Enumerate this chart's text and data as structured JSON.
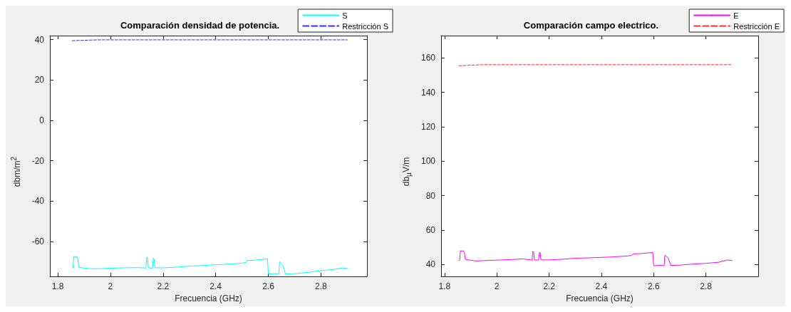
{
  "chart_data": [
    {
      "type": "line",
      "title": "Comparación densidad de potencia.",
      "xlabel": "Frecuencia (GHz)",
      "ylabel": "dbm/m$^{2}$",
      "xlim": [
        1.77,
        2.975
      ],
      "ylim": [
        -77.3,
        42
      ],
      "xticks": [
        1.8,
        2,
        2.2,
        2.4,
        2.6,
        2.8
      ],
      "yticks": [
        -60,
        -40,
        -20,
        0,
        20,
        40
      ],
      "grid": false,
      "legend": "top right",
      "marker": "none",
      "series": [
        {
          "name": "S",
          "color": "#00ffff",
          "line_style": "solid",
          "x": [
            1.855,
            1.858,
            1.861,
            1.868,
            1.872,
            1.876,
            1.88,
            1.92,
            1.95,
            2.0,
            2.05,
            2.1,
            2.135,
            2.138,
            2.141,
            2.144,
            2.16,
            2.163,
            2.166,
            2.169,
            2.172,
            2.2,
            2.25,
            2.3,
            2.35,
            2.4,
            2.45,
            2.5,
            2.515,
            2.52,
            2.55,
            2.597,
            2.6,
            2.62,
            2.64,
            2.643,
            2.646,
            2.655,
            2.66,
            2.665,
            2.7,
            2.75,
            2.8,
            2.85,
            2.88,
            2.9
          ],
          "values": [
            -73.1,
            -73.0,
            -67.4,
            -67.6,
            -67.4,
            -68.5,
            -72.8,
            -73.4,
            -73.5,
            -73.2,
            -73.0,
            -72.9,
            -73.1,
            -67.7,
            -67.9,
            -73.0,
            -73.2,
            -68.3,
            -68.5,
            -73.1,
            -73.0,
            -73.0,
            -72.7,
            -72.2,
            -71.9,
            -71.5,
            -71.2,
            -70.7,
            -70.4,
            -69.4,
            -69.2,
            -68.6,
            -76.1,
            -75.9,
            -76.0,
            -70.0,
            -70.5,
            -71.6,
            -73.5,
            -76.1,
            -75.9,
            -75.3,
            -74.4,
            -73.8,
            -73.1,
            -73.3
          ]
        },
        {
          "name": "Restricción S",
          "color": "#3333ff",
          "line_style": "dashed",
          "x": [
            1.855,
            1.95,
            2.9
          ],
          "values": [
            39.5,
            39.9,
            39.9
          ]
        }
      ]
    },
    {
      "type": "line",
      "title": "Comparación campo electrico.",
      "xlabel": "Frecuencia (GHz)",
      "ylabel": "db$_{µ}$V/m",
      "xlim": [
        1.787,
        3.0
      ],
      "ylim": [
        33,
        173
      ],
      "xticks": [
        1.8,
        2,
        2.2,
        2.4,
        2.6,
        2.8
      ],
      "yticks": [
        40,
        60,
        80,
        100,
        120,
        140,
        160
      ],
      "grid": false,
      "legend": "top right",
      "marker": "none",
      "series": [
        {
          "name": "E",
          "color": "#ff00ff",
          "line_style": "solid",
          "x": [
            1.855,
            1.858,
            1.861,
            1.868,
            1.872,
            1.876,
            1.88,
            1.92,
            1.95,
            2.0,
            2.05,
            2.1,
            2.135,
            2.138,
            2.141,
            2.144,
            2.16,
            2.163,
            2.166,
            2.169,
            2.172,
            2.2,
            2.25,
            2.3,
            2.35,
            2.4,
            2.45,
            2.5,
            2.515,
            2.52,
            2.55,
            2.597,
            2.6,
            2.62,
            2.64,
            2.643,
            2.646,
            2.655,
            2.66,
            2.665,
            2.7,
            2.75,
            2.8,
            2.85,
            2.88,
            2.9
          ],
          "values": [
            42.3,
            42.4,
            48.0,
            47.6,
            48.0,
            47.0,
            42.9,
            42.0,
            42.2,
            42.5,
            42.8,
            43.2,
            42.5,
            47.5,
            47.3,
            42.6,
            42.6,
            47.0,
            46.8,
            42.7,
            42.6,
            42.6,
            43.0,
            43.6,
            43.8,
            44.1,
            44.4,
            44.9,
            45.2,
            46.1,
            46.3,
            46.9,
            39.2,
            39.5,
            39.3,
            45.4,
            45.0,
            43.9,
            42.0,
            39.4,
            39.6,
            40.2,
            40.6,
            41.3,
            42.6,
            42.2
          ]
        },
        {
          "name": "Restricción E",
          "color": "#ff3333",
          "line_style": "dashed",
          "x": [
            1.855,
            1.95,
            2.9
          ],
          "values": [
            155.5,
            156.1,
            156.1
          ]
        }
      ]
    }
  ]
}
